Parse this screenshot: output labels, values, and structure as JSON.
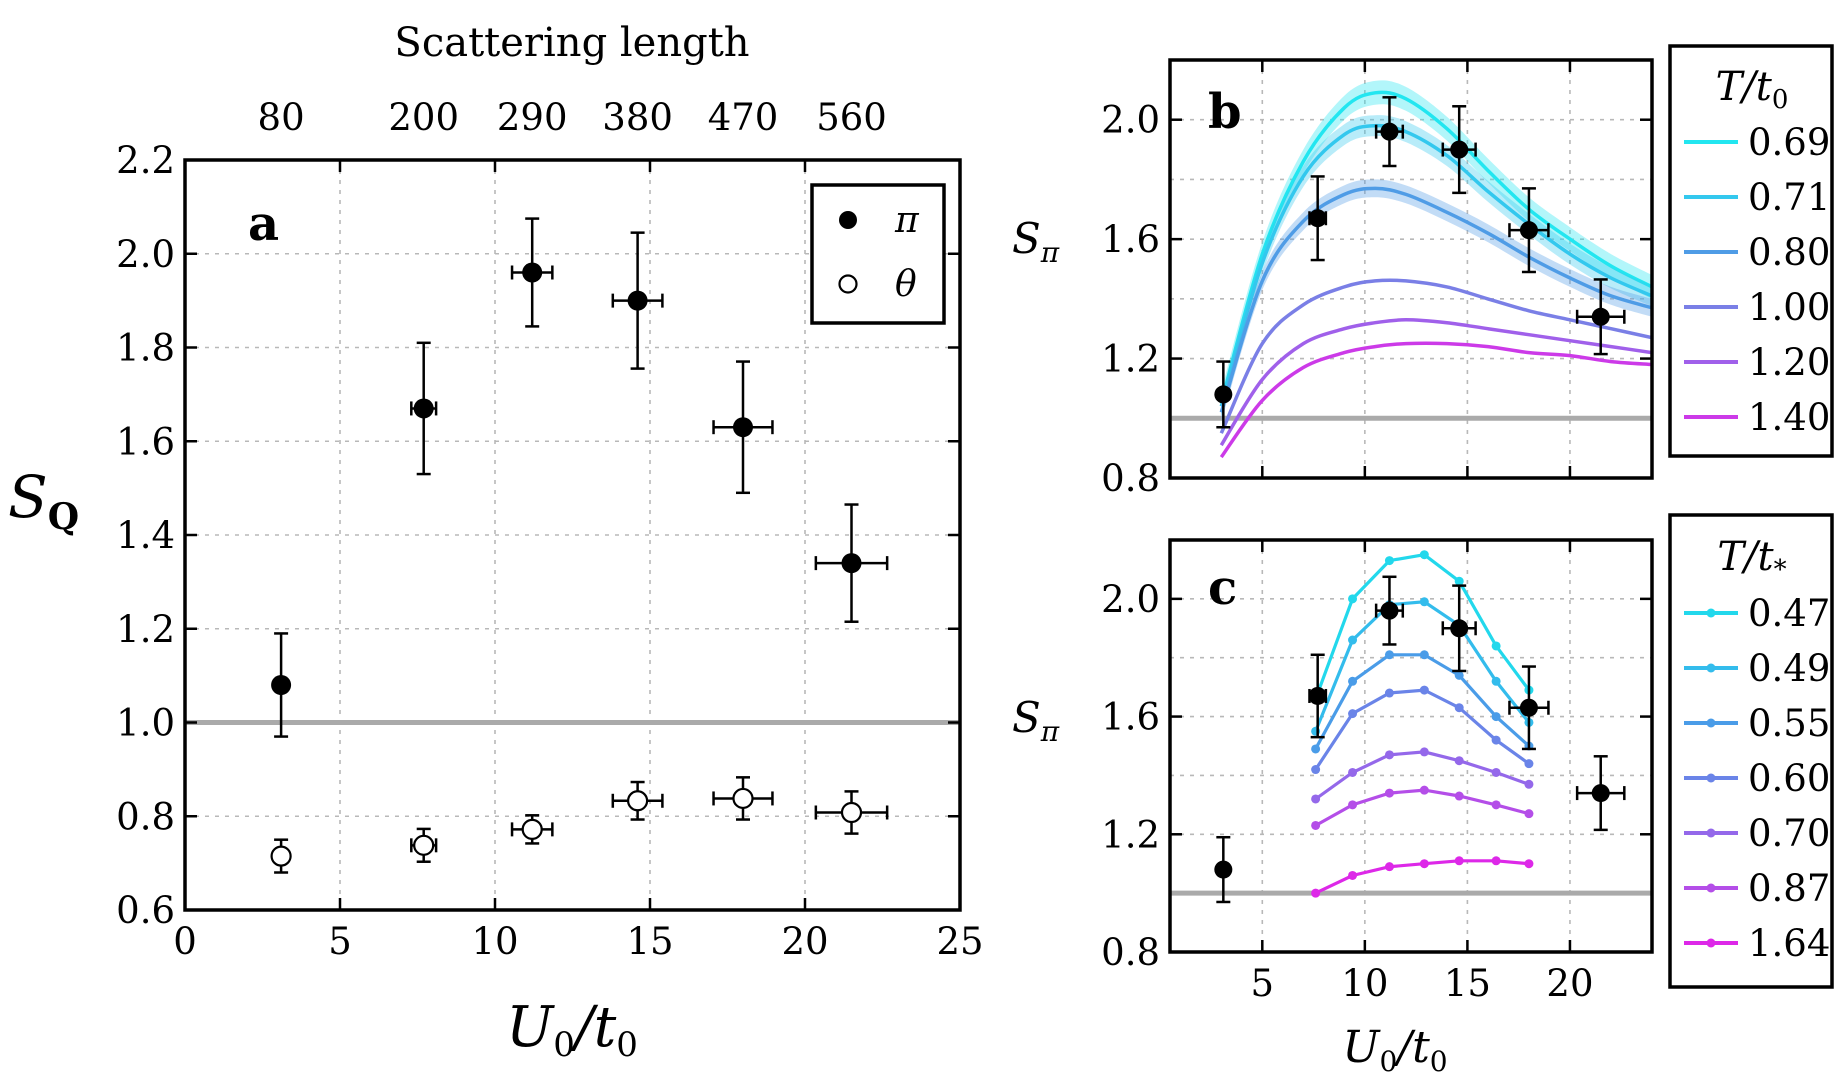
{
  "chart_data": [
    {
      "panel": "a",
      "type": "scatter",
      "title": "",
      "xlabel": "U0/t0",
      "xlabel_parts": {
        "main": "U",
        "sub": "0",
        "slash": "/t",
        "sub2": "0"
      },
      "ylabel": "SQ",
      "ylabel_parts": {
        "main": "S",
        "sub": "Q"
      },
      "top_axis_label": "Scattering length",
      "top_ticks": [
        "80",
        "200",
        "290",
        "380",
        "470",
        "560"
      ],
      "top_tick_x": [
        3.1,
        7.7,
        11.2,
        14.6,
        18.0,
        21.5
      ],
      "xlim": [
        0,
        25
      ],
      "ylim": [
        0.6,
        2.2
      ],
      "xticks": [
        0,
        5,
        10,
        15,
        20,
        25
      ],
      "yticks": [
        0.6,
        0.8,
        1.0,
        1.2,
        1.4,
        1.6,
        1.8,
        2.0,
        2.2
      ],
      "ytick_labels": [
        "0.6",
        "0.8",
        "1.0",
        "1.2",
        "1.4",
        "1.6",
        "1.8",
        "2.0",
        "2.2"
      ],
      "grid": true,
      "reference_line_y": 1.0,
      "legend_position": "top-right",
      "series": [
        {
          "name": "π",
          "marker": "filled-circle",
          "x": [
            3.1,
            7.7,
            11.2,
            14.6,
            18.0,
            21.5
          ],
          "y": [
            1.08,
            1.67,
            1.96,
            1.9,
            1.63,
            1.34
          ],
          "yerr": [
            0.11,
            0.14,
            0.115,
            0.145,
            0.14,
            0.125
          ],
          "xerr": [
            0.0,
            0.4,
            0.65,
            0.8,
            0.95,
            1.15
          ]
        },
        {
          "name": "θ",
          "marker": "open-circle",
          "x": [
            3.1,
            7.7,
            11.2,
            14.6,
            18.0,
            21.5
          ],
          "y": [
            0.715,
            0.738,
            0.772,
            0.833,
            0.838,
            0.808
          ],
          "yerr": [
            0.035,
            0.035,
            0.03,
            0.04,
            0.045,
            0.045
          ],
          "xerr": [
            0.0,
            0.4,
            0.65,
            0.8,
            0.95,
            1.15
          ]
        }
      ]
    },
    {
      "panel": "b",
      "type": "line",
      "xlabel": "",
      "ylabel": "Sπ",
      "ylabel_parts": {
        "main": "S",
        "sub": "π"
      },
      "xlim": [
        0.5,
        24
      ],
      "ylim": [
        0.8,
        2.2
      ],
      "yticks": [
        0.8,
        1.2,
        1.6,
        2.0
      ],
      "ytick_labels": [
        "0.8",
        "1.2",
        "1.6",
        "2.0"
      ],
      "grid": true,
      "reference_line_y": 1.0,
      "legend": {
        "title_main": "T",
        "title_slash": "/t",
        "title_sub": "0",
        "entries": [
          "0.69",
          "0.71",
          "0.80",
          "1.00",
          "1.20",
          "1.40"
        ]
      },
      "legend_position": "outside-right",
      "curves": [
        {
          "name": "0.69",
          "color": "#22e6f0",
          "band": 0.04,
          "x": [
            3,
            5,
            7,
            9,
            10.5,
            12,
            14,
            16,
            18,
            20,
            22,
            24
          ],
          "y": [
            1.05,
            1.55,
            1.86,
            2.04,
            2.09,
            2.07,
            1.97,
            1.83,
            1.7,
            1.6,
            1.51,
            1.44
          ]
        },
        {
          "name": "0.71",
          "color": "#33c8ee",
          "band": 0.035,
          "x": [
            3,
            5,
            7,
            9,
            10.5,
            12,
            14,
            16,
            18,
            20,
            22,
            24
          ],
          "y": [
            1.04,
            1.52,
            1.81,
            1.95,
            1.98,
            1.96,
            1.88,
            1.76,
            1.65,
            1.55,
            1.47,
            1.41
          ]
        },
        {
          "name": "0.80",
          "color": "#4f9ce6",
          "band": 0.03,
          "x": [
            3,
            5,
            7,
            9,
            10.5,
            12,
            14,
            16,
            18,
            20,
            22,
            24
          ],
          "y": [
            1.02,
            1.46,
            1.66,
            1.75,
            1.77,
            1.75,
            1.69,
            1.62,
            1.54,
            1.47,
            1.41,
            1.37
          ]
        },
        {
          "name": "1.00",
          "color": "#7a7fe6",
          "band": 0,
          "x": [
            3,
            5,
            7,
            9,
            10.5,
            12,
            14,
            16,
            18,
            20,
            22,
            24
          ],
          "y": [
            0.95,
            1.25,
            1.38,
            1.44,
            1.46,
            1.46,
            1.44,
            1.4,
            1.36,
            1.33,
            1.3,
            1.27
          ]
        },
        {
          "name": "1.20",
          "color": "#a060ea",
          "band": 0,
          "x": [
            3,
            5,
            7,
            9,
            10.5,
            12,
            14,
            16,
            18,
            20,
            22,
            24
          ],
          "y": [
            0.91,
            1.13,
            1.25,
            1.3,
            1.32,
            1.33,
            1.32,
            1.3,
            1.28,
            1.26,
            1.24,
            1.22
          ]
        },
        {
          "name": "1.40",
          "color": "#cc3ae8",
          "band": 0,
          "x": [
            3,
            5,
            7,
            9,
            10.5,
            12,
            14,
            16,
            18,
            20,
            22,
            24
          ],
          "y": [
            0.87,
            1.06,
            1.17,
            1.22,
            1.24,
            1.25,
            1.25,
            1.24,
            1.22,
            1.21,
            1.19,
            1.18
          ]
        }
      ],
      "data": {
        "x": [
          3.1,
          7.7,
          11.2,
          14.6,
          18.0,
          21.5
        ],
        "y": [
          1.08,
          1.67,
          1.96,
          1.9,
          1.63,
          1.34
        ],
        "yerr": [
          0.11,
          0.14,
          0.115,
          0.145,
          0.14,
          0.125
        ],
        "xerr": [
          0.0,
          0.4,
          0.65,
          0.8,
          0.95,
          1.15
        ]
      }
    },
    {
      "panel": "c",
      "type": "line",
      "xlabel": "U0/t0",
      "xlabel_parts": {
        "main": "U",
        "sub": "0",
        "slash": "/t",
        "sub2": "0"
      },
      "ylabel": "Sπ",
      "ylabel_parts": {
        "main": "S",
        "sub": "π"
      },
      "xlim": [
        0.5,
        24
      ],
      "ylim": [
        0.8,
        2.2
      ],
      "xticks": [
        5,
        10,
        15,
        20
      ],
      "yticks": [
        0.8,
        1.2,
        1.6,
        2.0
      ],
      "ytick_labels": [
        "0.8",
        "1.2",
        "1.6",
        "2.0"
      ],
      "grid": true,
      "reference_line_y": 1.0,
      "legend": {
        "title_main": "T",
        "title_slash": "/t",
        "title_sub": "*",
        "entries": [
          "0.47",
          "0.49",
          "0.55",
          "0.60",
          "0.70",
          "0.87",
          "1.64"
        ]
      },
      "legend_position": "outside-right",
      "x_points": [
        7.6,
        9.4,
        11.2,
        12.9,
        14.6,
        16.4,
        18.0
      ],
      "curves": [
        {
          "name": "0.47",
          "color": "#22d8ec",
          "y": [
            1.66,
            2.0,
            2.13,
            2.15,
            2.06,
            1.84,
            1.69
          ]
        },
        {
          "name": "0.49",
          "color": "#33bcec",
          "y": [
            1.55,
            1.86,
            1.98,
            1.99,
            1.91,
            1.72,
            1.58
          ]
        },
        {
          "name": "0.55",
          "color": "#4a9ce8",
          "y": [
            1.49,
            1.72,
            1.81,
            1.81,
            1.74,
            1.6,
            1.5
          ]
        },
        {
          "name": "0.60",
          "color": "#6a84e8",
          "y": [
            1.42,
            1.61,
            1.68,
            1.69,
            1.63,
            1.52,
            1.44
          ]
        },
        {
          "name": "0.70",
          "color": "#9468ea",
          "y": [
            1.32,
            1.41,
            1.47,
            1.48,
            1.45,
            1.41,
            1.37
          ]
        },
        {
          "name": "0.87",
          "color": "#b44ee8",
          "y": [
            1.23,
            1.3,
            1.34,
            1.35,
            1.33,
            1.3,
            1.27
          ]
        },
        {
          "name": "1.64",
          "color": "#dd28e8",
          "y": [
            1.0,
            1.06,
            1.09,
            1.1,
            1.11,
            1.11,
            1.1
          ]
        }
      ],
      "data": {
        "x": [
          3.1,
          7.7,
          11.2,
          14.6,
          18.0,
          21.5
        ],
        "y": [
          1.08,
          1.67,
          1.96,
          1.9,
          1.63,
          1.34
        ],
        "yerr": [
          0.11,
          0.14,
          0.115,
          0.145,
          0.14,
          0.125
        ],
        "xerr": [
          0.0,
          0.4,
          0.65,
          0.8,
          0.95,
          1.15
        ]
      }
    }
  ],
  "panel_letters": {
    "a": "a",
    "b": "b",
    "c": "c"
  }
}
